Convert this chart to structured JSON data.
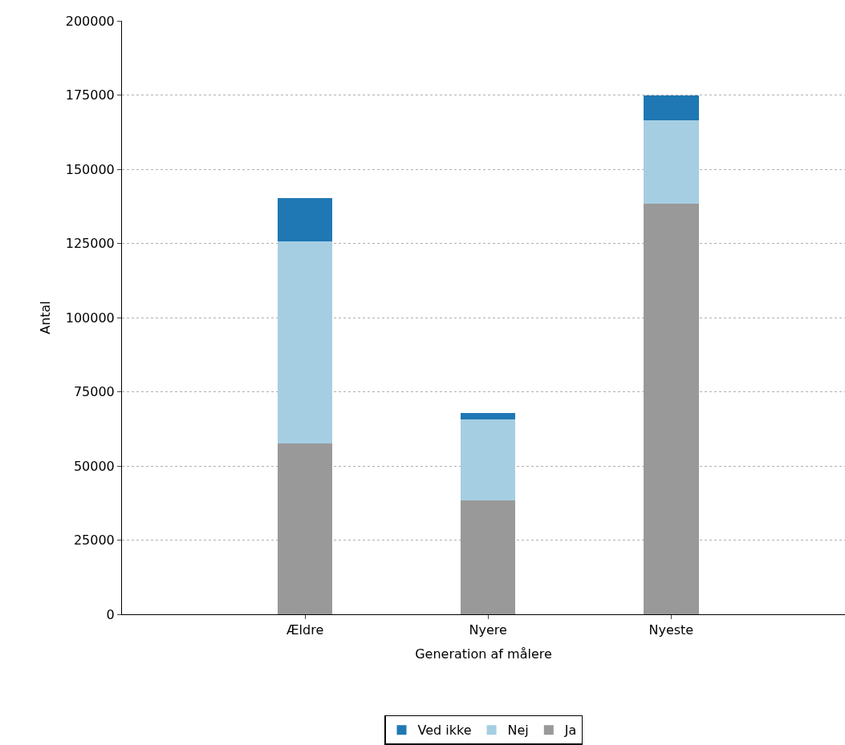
{
  "chart_data": {
    "type": "bar",
    "stacked": true,
    "xlabel": "Generation af målere",
    "ylabel": "Antal",
    "categories": [
      "Ældre",
      "Nyere",
      "Nyeste"
    ],
    "series": [
      {
        "name": "Ja",
        "color": "#999999",
        "values": [
          57700,
          38300,
          138300
        ]
      },
      {
        "name": "Nej",
        "color": "#a6cee3",
        "values": [
          67900,
          27500,
          28300
        ]
      },
      {
        "name": "Ved ikke",
        "color": "#1f78b4",
        "values": [
          14800,
          2100,
          8300
        ]
      }
    ],
    "ylim": [
      0,
      200000
    ],
    "yticks": [
      0,
      25000,
      50000,
      75000,
      100000,
      125000,
      150000,
      175000,
      200000
    ],
    "grid": "y",
    "legend": "bottom"
  }
}
